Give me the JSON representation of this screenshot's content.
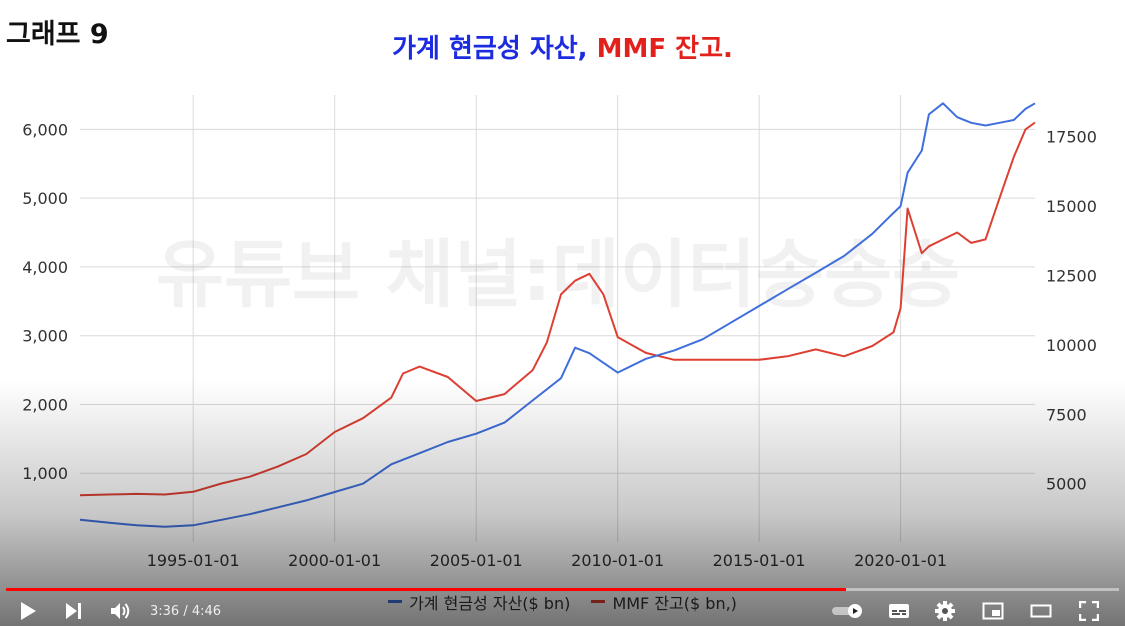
{
  "page_label": "그래프 9",
  "title": {
    "part1": "가계 현금성 자산,",
    "part2": "MMF 잔고."
  },
  "watermark": "유튜브 채널:데이터송송송",
  "colors": {
    "blue_series": "#3f6fdc",
    "red_series": "#dd4033",
    "title_blue": "#1d2be0",
    "title_red": "#e3211c",
    "grid": "#dadada",
    "progress": "#ff0000"
  },
  "chart_data": {
    "type": "line",
    "title": "가계 현금성 자산, MMF 잔고.",
    "x_type": "date",
    "x_ticks": [
      "1995-01-01",
      "2000-01-01",
      "2005-01-01",
      "2010-01-01",
      "2015-01-01",
      "2020-01-01"
    ],
    "x_range": [
      "1991-01-01",
      "2024-10-01"
    ],
    "y_left": {
      "ticks": [
        "1,000",
        "2,000",
        "3,000",
        "4,000",
        "5,000",
        "6,000"
      ],
      "range": [
        0,
        6500
      ]
    },
    "y_right": {
      "ticks": [
        "5000",
        "7500",
        "10000",
        "12500",
        "15000",
        "17500"
      ],
      "range": [
        2900,
        19000
      ]
    },
    "grid": true,
    "legend_position": "bottom",
    "series": [
      {
        "name": "MMF 잔고($ bn,)",
        "axis": "left",
        "color": "#dd4033",
        "x": [
          "1991-01-01",
          "1992-01-01",
          "1993-01-01",
          "1994-01-01",
          "1995-01-01",
          "1996-01-01",
          "1997-01-01",
          "1998-01-01",
          "1999-01-01",
          "2000-01-01",
          "2001-01-01",
          "2002-01-01",
          "2002-06-01",
          "2003-01-01",
          "2004-01-01",
          "2005-01-01",
          "2006-01-01",
          "2007-01-01",
          "2007-07-01",
          "2008-01-01",
          "2008-07-01",
          "2009-01-01",
          "2009-07-01",
          "2010-01-01",
          "2011-01-01",
          "2012-01-01",
          "2013-01-01",
          "2014-01-01",
          "2015-01-01",
          "2016-01-01",
          "2017-01-01",
          "2018-01-01",
          "2019-01-01",
          "2019-10-01",
          "2020-01-01",
          "2020-04-01",
          "2020-10-01",
          "2021-01-01",
          "2021-07-01",
          "2022-01-01",
          "2022-07-01",
          "2023-01-01",
          "2023-07-01",
          "2024-01-01",
          "2024-06-01",
          "2024-10-01"
        ],
        "y": [
          680,
          690,
          700,
          690,
          730,
          850,
          950,
          1100,
          1280,
          1600,
          1800,
          2100,
          2450,
          2550,
          2400,
          2050,
          2150,
          2500,
          2900,
          3600,
          3800,
          3900,
          3600,
          2980,
          2750,
          2650,
          2650,
          2650,
          2650,
          2700,
          2800,
          2700,
          2850,
          3050,
          3400,
          4850,
          4200,
          4300,
          4400,
          4500,
          4350,
          4400,
          5000,
          5600,
          6000,
          6100
        ]
      },
      {
        "name": "가계 현금성 자산($ bn)",
        "axis": "right",
        "color": "#3f6fdc",
        "x": [
          "1991-01-01",
          "1992-01-01",
          "1993-01-01",
          "1994-01-01",
          "1995-01-01",
          "1996-01-01",
          "1997-01-01",
          "1998-01-01",
          "1999-01-01",
          "2000-01-01",
          "2001-01-01",
          "2002-01-01",
          "2003-01-01",
          "2004-01-01",
          "2005-01-01",
          "2006-01-01",
          "2007-01-01",
          "2008-01-01",
          "2008-07-01",
          "2009-01-01",
          "2010-01-01",
          "2011-01-01",
          "2012-01-01",
          "2013-01-01",
          "2014-01-01",
          "2015-01-01",
          "2016-01-01",
          "2017-01-01",
          "2018-01-01",
          "2019-01-01",
          "2019-07-01",
          "2020-01-01",
          "2020-04-01",
          "2020-10-01",
          "2021-01-01",
          "2021-07-01",
          "2022-01-01",
          "2022-07-01",
          "2023-01-01",
          "2023-07-01",
          "2024-01-01",
          "2024-06-01",
          "2024-10-01"
        ],
        "y": [
          3700,
          3600,
          3500,
          3450,
          3500,
          3700,
          3900,
          4150,
          4400,
          4700,
          5000,
          5700,
          6100,
          6500,
          6800,
          7200,
          8000,
          8800,
          9900,
          9700,
          9000,
          9500,
          9800,
          10200,
          10800,
          11400,
          12000,
          12600,
          13200,
          14000,
          14500,
          15000,
          16200,
          17000,
          18300,
          18700,
          18200,
          18000,
          17900,
          18000,
          18100,
          18500,
          18700
        ]
      }
    ]
  },
  "player": {
    "current_time": "3:36",
    "duration": "4:46",
    "time_display": "3:36 / 4:46",
    "progress_fraction": 0.755
  }
}
